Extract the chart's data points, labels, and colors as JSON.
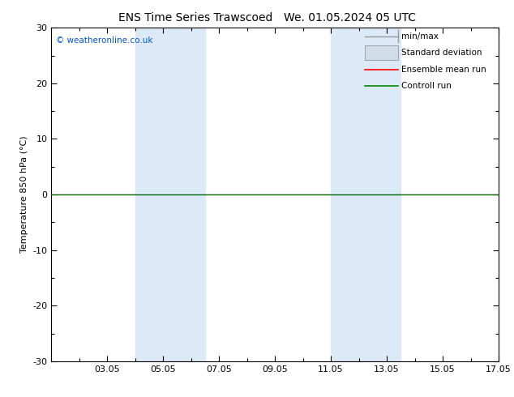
{
  "title_left": "ENS Time Series Trawscoed",
  "title_right": "We. 01.05.2024 05 UTC",
  "ylabel": "Temperature 850 hPa (°C)",
  "ylim": [
    -30,
    30
  ],
  "yticks": [
    -30,
    -20,
    -10,
    0,
    10,
    20,
    30
  ],
  "xtick_labels": [
    "03.05",
    "05.05",
    "07.05",
    "09.05",
    "11.05",
    "13.05",
    "15.05",
    "17.05"
  ],
  "xtick_positions": [
    2,
    4,
    6,
    8,
    10,
    12,
    14,
    16
  ],
  "xlim": [
    0,
    16
  ],
  "copyright_text": "© weatheronline.co.uk",
  "legend_items": [
    {
      "label": "min/max",
      "color": "#aaaaaa",
      "type": "line_with_caps"
    },
    {
      "label": "Standard deviation",
      "color": "#d0dce8",
      "type": "filled"
    },
    {
      "label": "Ensemble mean run",
      "color": "#ff0000",
      "type": "line"
    },
    {
      "label": "Controll run",
      "color": "#008800",
      "type": "line"
    }
  ],
  "shaded_bands": [
    {
      "x_start": 3,
      "x_end": 5.5
    },
    {
      "x_start": 10,
      "x_end": 12.5
    }
  ],
  "band_color": "#dce9f7",
  "background_color": "#ffffff",
  "zero_line_color": "#006600",
  "zero_line_y": 0,
  "title_fontsize": 10,
  "label_fontsize": 8,
  "tick_fontsize": 8,
  "copyright_fontsize": 7.5
}
